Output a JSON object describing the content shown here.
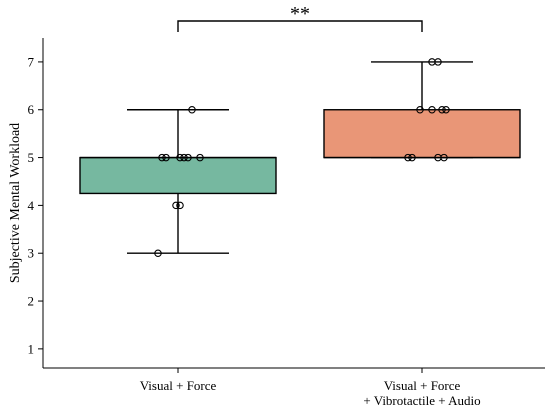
{
  "chart_data": {
    "type": "box",
    "title": "",
    "xlabel": "",
    "ylabel": "Subjective Mental Workload",
    "ylim": [
      0.6,
      7.5
    ],
    "yticks": [
      1,
      2,
      3,
      4,
      5,
      6,
      7
    ],
    "grid": false,
    "legend": "none",
    "categories": [
      [
        "Visual + Force"
      ],
      [
        "Visual + Force",
        "+ Vibrotactile + Audio"
      ]
    ],
    "colors": [
      "#76b8a0",
      "#e99677"
    ],
    "boxes": [
      {
        "whisker_low": 3,
        "q1": 4.25,
        "median": 5,
        "q3": 5,
        "whisker_high": 6
      },
      {
        "whisker_low": 5,
        "q1": 5,
        "median": 5,
        "q3": 6,
        "whisker_high": 7
      }
    ],
    "points": [
      [
        3,
        4,
        4,
        5,
        5,
        5,
        5,
        5,
        5,
        6
      ],
      [
        5,
        5,
        5,
        5,
        6,
        6,
        6,
        6,
        7,
        7
      ]
    ],
    "significance": {
      "between": [
        0,
        1
      ],
      "label": "**"
    }
  }
}
